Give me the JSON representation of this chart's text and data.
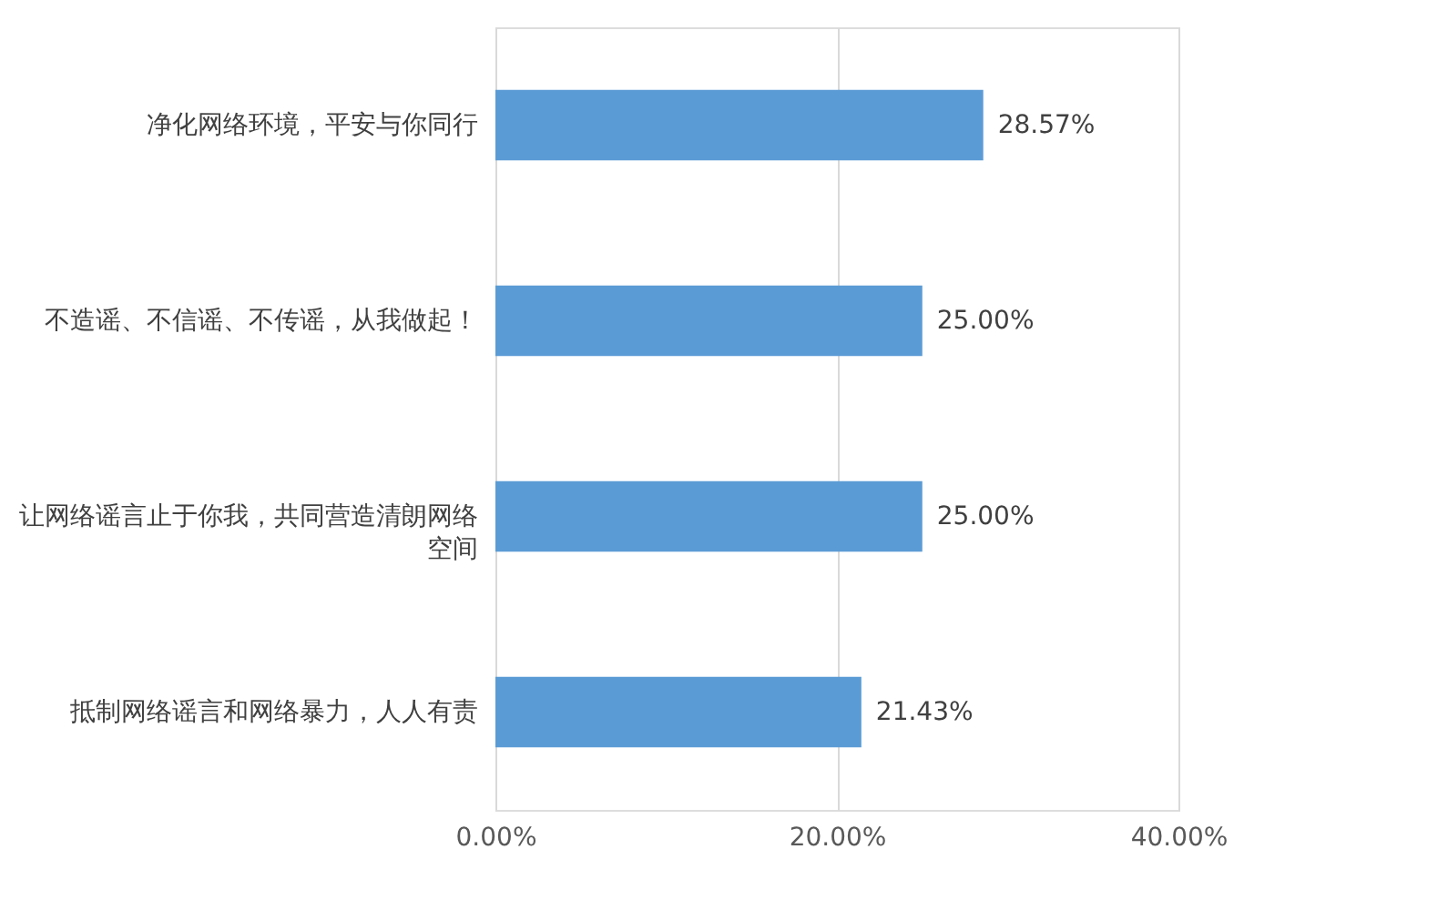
{
  "chart_data": {
    "type": "bar",
    "orientation": "horizontal",
    "categories": [
      "净化网络环境，平安与你同行",
      "不造谣、不信谣、不传谣，从我做起！",
      "让网络谣言止于你我，共同营造清朗网络空间",
      "抵制网络谣言和网络暴力，人人有责"
    ],
    "values": [
      28.57,
      25.0,
      25.0,
      21.43
    ],
    "value_labels": [
      "28.57%",
      "25.00%",
      "25.00%",
      "21.43%"
    ],
    "color": "#5b9bd5",
    "xlim": [
      0,
      40
    ],
    "xticks": [
      {
        "value": 0,
        "label": "0.00%"
      },
      {
        "value": 20,
        "label": "20.00%"
      },
      {
        "value": 40,
        "label": "40.00%"
      }
    ],
    "grid": "x"
  }
}
